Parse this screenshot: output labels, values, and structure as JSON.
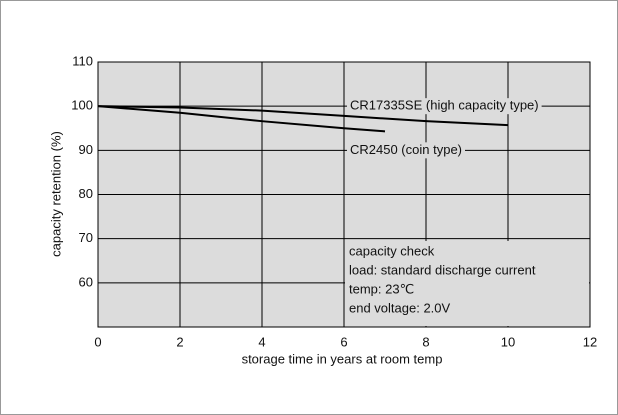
{
  "chart_data": {
    "type": "line",
    "xlabel": "storage time in years at room temp",
    "ylabel": "capacity retention (%)",
    "xlim": [
      0,
      12
    ],
    "xticks": [
      0,
      2,
      4,
      6,
      8,
      10,
      12
    ],
    "ylim": [
      50,
      110
    ],
    "yticks": [
      60,
      70,
      80,
      90,
      100,
      110
    ],
    "grid": true,
    "plot_background": "#dcdcdc",
    "series": [
      {
        "name": "CR17335SE (high capacity type)",
        "color": "#000000",
        "x": [
          0,
          2,
          4,
          6,
          8,
          10
        ],
        "values": [
          100,
          99.7,
          99,
          97.8,
          96.6,
          95.7
        ]
      },
      {
        "name": "CR2450 (coin type)",
        "color": "#000000",
        "x": [
          0,
          2,
          4,
          6,
          7
        ],
        "values": [
          100,
          98.5,
          96.6,
          95,
          94.3
        ]
      }
    ],
    "annotation": [
      "capacity check",
      "load: standard discharge current",
      "temp: 23℃",
      "end voltage: 2.0V"
    ]
  }
}
